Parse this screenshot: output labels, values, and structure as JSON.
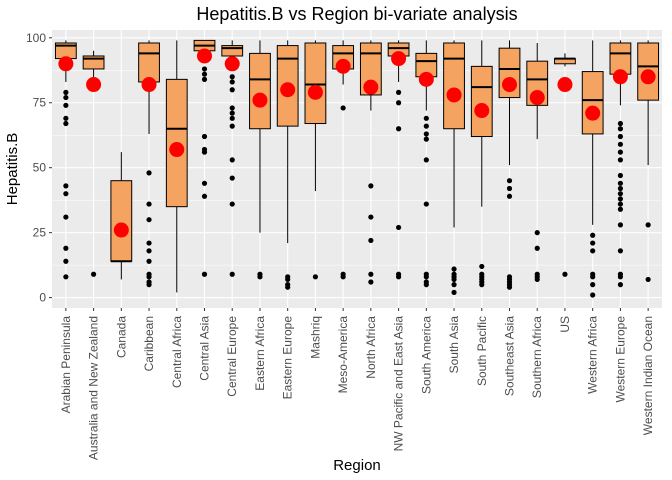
{
  "chart_data": {
    "type": "boxplot",
    "title": "Hepatitis.B vs Region bi-variate analysis",
    "xlabel": "Region",
    "ylabel": "Hepatitis.B",
    "ylim": [
      -4,
      103
    ],
    "yticks": [
      0,
      25,
      50,
      75,
      100
    ],
    "grid": true,
    "legend": "none",
    "colors": {
      "panel": "#EBEBEB",
      "grid_major": "#FFFFFF",
      "box_fill": "#F4A460",
      "box_line": "#000000",
      "mean_point": "#FF0000",
      "outlier": "#000000"
    },
    "boxes": [
      {
        "category": "Arabian Peninsula",
        "whisker_low": 83,
        "q1": 92,
        "median": 97,
        "q3": 98,
        "whisker_high": 99,
        "mean": 90,
        "outliers": [
          79,
          77,
          74,
          69,
          67,
          43,
          40,
          31,
          19,
          14,
          8
        ]
      },
      {
        "category": "Australia and New Zealand",
        "whisker_low": 82,
        "q1": 88,
        "median": 92,
        "q3": 93,
        "whisker_high": 95,
        "mean": 82,
        "outliers": [
          9
        ]
      },
      {
        "category": "Canada",
        "whisker_low": 7,
        "q1": 14,
        "median": 14,
        "q3": 45,
        "whisker_high": 56,
        "mean": 26,
        "outliers": []
      },
      {
        "category": "Caribbean",
        "whisker_low": 63,
        "q1": 83,
        "median": 94,
        "q3": 98,
        "whisker_high": 99,
        "mean": 82,
        "outliers": [
          48,
          36,
          30,
          21,
          18,
          14,
          9,
          8,
          6,
          5
        ]
      },
      {
        "category": "Central Africa",
        "whisker_low": 2,
        "q1": 35,
        "median": 65,
        "q3": 84,
        "whisker_high": 99,
        "mean": 57,
        "outliers": []
      },
      {
        "category": "Central Asia",
        "whisker_low": 92,
        "q1": 95,
        "median": 97,
        "q3": 99,
        "whisker_high": 99,
        "mean": 93,
        "outliers": [
          88,
          86,
          84,
          62,
          57,
          56,
          44,
          39,
          9
        ]
      },
      {
        "category": "Central Europe",
        "whisker_low": 89,
        "q1": 93,
        "median": 96,
        "q3": 97,
        "whisker_high": 99,
        "mean": 90,
        "outliers": [
          85,
          83,
          80,
          73,
          71,
          69,
          66,
          53,
          46,
          36,
          9
        ]
      },
      {
        "category": "Eastern Africa",
        "whisker_low": 25,
        "q1": 65,
        "median": 84,
        "q3": 94,
        "whisker_high": 99,
        "mean": 76,
        "outliers": [
          9,
          8
        ]
      },
      {
        "category": "Eastern Europe",
        "whisker_low": 21,
        "q1": 66,
        "median": 92,
        "q3": 97,
        "whisker_high": 99,
        "mean": 80,
        "outliers": [
          8,
          7,
          5,
          4
        ]
      },
      {
        "category": "Mashriq",
        "whisker_low": 41,
        "q1": 67,
        "median": 82,
        "q3": 98,
        "whisker_high": 99,
        "mean": 79,
        "outliers": [
          8
        ]
      },
      {
        "category": "Meso-America",
        "whisker_low": 82,
        "q1": 88,
        "median": 94,
        "q3": 97,
        "whisker_high": 99,
        "mean": 89,
        "outliers": [
          73,
          9,
          8
        ]
      },
      {
        "category": "North Africa",
        "whisker_low": 72,
        "q1": 78,
        "median": 94,
        "q3": 98,
        "whisker_high": 99,
        "mean": 81,
        "outliers": [
          43,
          31,
          22,
          9,
          6
        ]
      },
      {
        "category": "NW Pacific and East Asia",
        "whisker_low": 83,
        "q1": 93,
        "median": 96,
        "q3": 98,
        "whisker_high": 99,
        "mean": 92,
        "outliers": [
          79,
          75,
          65,
          27,
          9,
          8
        ]
      },
      {
        "category": "South America",
        "whisker_low": 72,
        "q1": 85,
        "median": 91,
        "q3": 94,
        "whisker_high": 99,
        "mean": 84,
        "outliers": [
          69,
          66,
          63,
          61,
          53,
          36,
          9,
          8,
          6,
          5
        ]
      },
      {
        "category": "South Asia",
        "whisker_low": 27,
        "q1": 65,
        "median": 92,
        "q3": 98,
        "whisker_high": 99,
        "mean": 78,
        "outliers": [
          11,
          9,
          8,
          7,
          5,
          2
        ]
      },
      {
        "category": "South Pacific",
        "whisker_low": 35,
        "q1": 62,
        "median": 81,
        "q3": 89,
        "whisker_high": 99,
        "mean": 72,
        "outliers": [
          12,
          9,
          8,
          7,
          6,
          5
        ]
      },
      {
        "category": "Southeast Asia",
        "whisker_low": 51,
        "q1": 77,
        "median": 88,
        "q3": 96,
        "whisker_high": 99,
        "mean": 82,
        "outliers": [
          45,
          42,
          39,
          8,
          7,
          6,
          5,
          4
        ]
      },
      {
        "category": "Southern Africa",
        "whisker_low": 61,
        "q1": 74,
        "median": 84,
        "q3": 91,
        "whisker_high": 98,
        "mean": 77,
        "outliers": [
          25,
          19,
          9,
          8,
          7
        ]
      },
      {
        "category": "US",
        "whisker_low": 89,
        "q1": 90,
        "median": 92,
        "q3": 92,
        "whisker_high": 94,
        "mean": 82,
        "outliers": [
          9
        ]
      },
      {
        "category": "Western Africa",
        "whisker_low": 28,
        "q1": 63,
        "median": 76,
        "q3": 87,
        "whisker_high": 99,
        "mean": 71,
        "outliers": [
          24,
          21,
          18,
          9,
          8,
          5,
          1
        ]
      },
      {
        "category": "Western Europe",
        "whisker_low": 74,
        "q1": 86,
        "median": 94,
        "q3": 98,
        "whisker_high": 99,
        "mean": 85,
        "outliers": [
          67,
          65,
          62,
          59,
          56,
          53,
          47,
          44,
          42,
          40,
          38,
          36,
          34,
          28,
          18,
          9,
          8,
          5
        ]
      },
      {
        "category": "Western Indian Ocean",
        "whisker_low": 51,
        "q1": 76,
        "median": 89,
        "q3": 98,
        "whisker_high": 99,
        "mean": 85,
        "outliers": [
          28,
          7
        ]
      }
    ]
  }
}
